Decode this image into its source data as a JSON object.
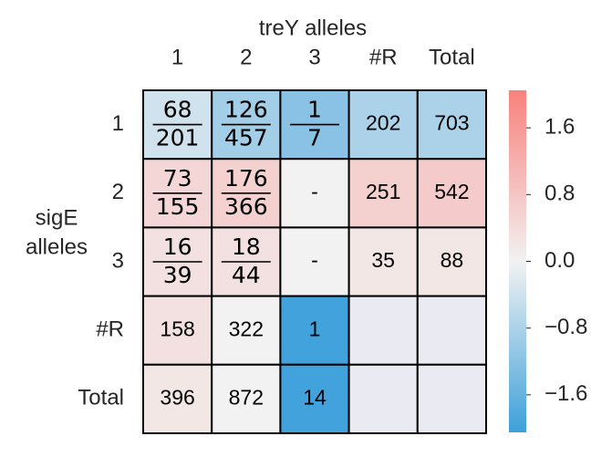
{
  "chart_data": {
    "type": "heatmap",
    "title": "treY alleles",
    "ylabel": [
      "sigE",
      "alleles"
    ],
    "x_categories": [
      "1",
      "2",
      "3",
      "#R",
      "Total"
    ],
    "y_categories": [
      "1",
      "2",
      "3",
      "#R",
      "Total"
    ],
    "values": [
      [
        -0.4,
        -0.9,
        -1.2,
        -0.8,
        -0.8
      ],
      [
        0.5,
        0.6,
        0.0,
        0.6,
        0.7
      ],
      [
        0.3,
        0.3,
        0.0,
        0.2,
        0.2
      ],
      [
        0.3,
        0.0,
        -2.0,
        null,
        null
      ],
      [
        0.2,
        0.0,
        -2.0,
        null,
        null
      ]
    ],
    "cell_labels": [
      [
        {
          "numerator": 68,
          "denominator": 201
        },
        {
          "numerator": 126,
          "denominator": 457
        },
        {
          "numerator": 1,
          "denominator": 7
        },
        202,
        703
      ],
      [
        {
          "numerator": 73,
          "denominator": 155
        },
        {
          "numerator": 176,
          "denominator": 366
        },
        "-",
        251,
        542
      ],
      [
        {
          "numerator": 16,
          "denominator": 39
        },
        {
          "numerator": 18,
          "denominator": 44
        },
        "-",
        35,
        88
      ],
      [
        158,
        322,
        1,
        null,
        null
      ],
      [
        396,
        872,
        14,
        null,
        null
      ]
    ],
    "colorbar_lim": [
      -2.05,
      2.05
    ],
    "colorbar_ticks": [
      1.6,
      0.8,
      {
        "value": 0.0,
        "label": "0.0"
      },
      {
        "value": -0.8,
        "label": "−0.8"
      },
      {
        "value": -1.6,
        "label": "−1.6"
      }
    ],
    "colors": {
      "low": "#3ea0da",
      "mid": "#f2f2f2",
      "high": "#f8817c",
      "missing": "#eaeaf2"
    }
  }
}
